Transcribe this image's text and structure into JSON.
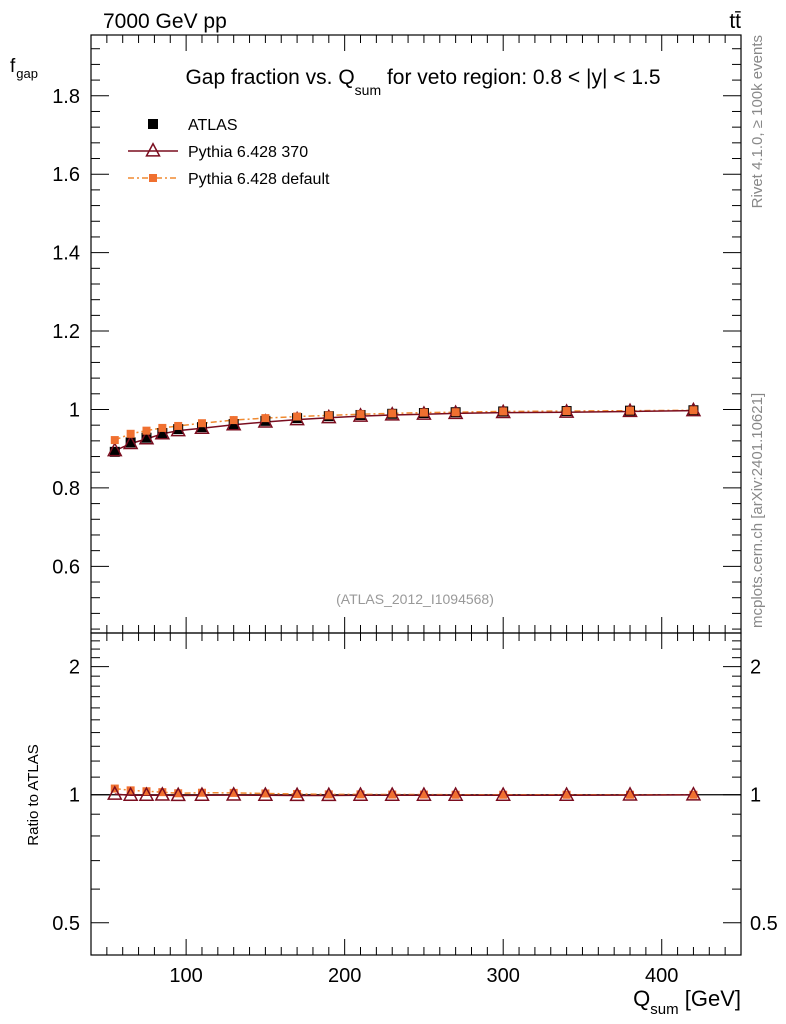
{
  "header": {
    "energy_label": "7000 GeV pp",
    "process_label": "tt̄",
    "title_prefix": "Gap fraction vs. Q",
    "title_sub": "sum",
    "title_suffix": " for veto region: 0.8 < |y| < 1.5",
    "side_label_top": "Rivet 4.1.0, ≥ 100k events",
    "side_label_bottom": "mcplots.cern.ch [arXiv:2401.10621]",
    "analysis_tag": "(ATLAS_2012_I1094568)"
  },
  "colors": {
    "atlas": "#000000",
    "pythia370": "#7a0d1f",
    "pythia_default": "#f08a30",
    "pythia_default_fill": "#f07030",
    "side_label": "#888888",
    "analysis_tag": "#999999"
  },
  "chart_data": [
    {
      "type": "scatter",
      "panel": "main",
      "title": "Gap fraction vs. Qsum for veto region: 0.8 < |y| < 1.5",
      "xlabel_main": "Q",
      "xlabel_sub": "sum",
      "xlabel_unit": " [GeV]",
      "ylabel_main": "f",
      "ylabel_sub": "gap",
      "xlim": [
        40,
        450
      ],
      "ylim": [
        0.43,
        1.955
      ],
      "x_ticks": [
        100,
        200,
        300,
        400
      ],
      "y_ticks": [
        0.6,
        0.8,
        1.0,
        1.2,
        1.4,
        1.6,
        1.8
      ],
      "y_tick_labels": [
        "0.6",
        "0.8",
        "1",
        "1.2",
        "1.4",
        "1.6",
        "1.8"
      ],
      "x": [
        55,
        65,
        75,
        85,
        95,
        110,
        130,
        150,
        170,
        190,
        210,
        230,
        250,
        270,
        300,
        340,
        380,
        420
      ],
      "legend": [
        "ATLAS",
        "Pythia 6.428 370",
        "Pythia 6.428 default"
      ],
      "series": [
        {
          "name": "ATLAS",
          "values": [
            0.892,
            0.916,
            0.928,
            0.94,
            0.95,
            0.955,
            0.963,
            0.971,
            0.978,
            0.983,
            0.986,
            0.989,
            0.991,
            0.993,
            0.995,
            0.996,
            0.997,
            0.998
          ]
        },
        {
          "name": "Pythia 6.428 370",
          "values": [
            0.895,
            0.913,
            0.925,
            0.938,
            0.946,
            0.952,
            0.961,
            0.968,
            0.974,
            0.979,
            0.983,
            0.986,
            0.988,
            0.99,
            0.992,
            0.993,
            0.995,
            0.997
          ]
        },
        {
          "name": "Pythia 6.428 default",
          "values": [
            0.922,
            0.938,
            0.946,
            0.953,
            0.958,
            0.965,
            0.973,
            0.978,
            0.982,
            0.985,
            0.988,
            0.99,
            0.992,
            0.993,
            0.995,
            0.996,
            0.997,
            0.998
          ]
        }
      ]
    },
    {
      "type": "scatter",
      "panel": "ratio",
      "ylabel": "Ratio to ATLAS",
      "xlim": [
        40,
        450
      ],
      "ylim": [
        0.42,
        2.4
      ],
      "y_scale": "log",
      "x_ticks": [
        100,
        200,
        300,
        400
      ],
      "x_tick_labels": [
        "100",
        "200",
        "300",
        "400"
      ],
      "y_ticks": [
        0.5,
        1,
        2
      ],
      "y_tick_labels": [
        "0.5",
        "1",
        "2"
      ],
      "x": [
        55,
        65,
        75,
        85,
        95,
        110,
        130,
        150,
        170,
        190,
        210,
        230,
        250,
        270,
        300,
        340,
        380,
        420
      ],
      "series": [
        {
          "name": "Pythia 6.428 370",
          "values": [
            1.003,
            0.997,
            0.997,
            0.998,
            0.996,
            0.997,
            0.998,
            0.997,
            0.996,
            0.996,
            0.997,
            0.997,
            0.997,
            0.997,
            0.997,
            0.997,
            0.998,
            0.999
          ]
        },
        {
          "name": "Pythia 6.428 default",
          "values": [
            1.034,
            1.024,
            1.019,
            1.014,
            1.008,
            1.011,
            1.01,
            1.007,
            1.004,
            1.002,
            1.002,
            1.001,
            1.001,
            1.0,
            1.0,
            1.0,
            1.0,
            1.0
          ]
        }
      ]
    }
  ]
}
